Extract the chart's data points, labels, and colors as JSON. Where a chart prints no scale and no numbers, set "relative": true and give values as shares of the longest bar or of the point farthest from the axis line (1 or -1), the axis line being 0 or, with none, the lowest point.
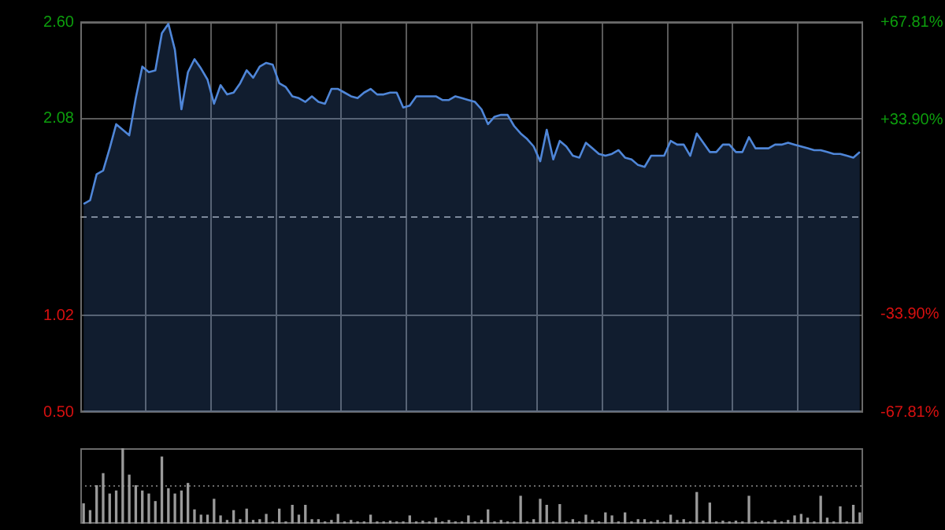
{
  "chart_data": [
    {
      "type": "area",
      "categories": [
        null,
        null,
        null,
        null,
        null,
        null,
        null,
        null,
        null,
        null,
        null,
        null,
        null,
        null,
        null,
        null,
        null,
        null,
        null,
        null,
        null,
        null,
        null,
        null,
        null,
        null,
        null,
        null,
        null,
        null,
        null,
        null,
        null,
        null,
        null,
        null,
        null,
        null,
        null,
        null,
        null,
        null,
        null,
        null,
        null,
        null,
        null,
        null,
        null,
        null,
        null,
        null,
        null,
        null,
        null,
        null,
        null,
        null,
        null,
        null,
        null,
        null,
        null,
        null,
        null,
        null,
        null,
        null,
        null,
        null,
        null,
        null,
        null,
        null,
        null,
        null,
        null,
        null,
        null,
        null,
        null,
        null,
        null,
        null,
        null,
        null,
        null,
        null,
        null,
        null,
        null,
        null,
        null,
        null,
        null,
        null,
        null,
        null,
        null,
        null,
        null,
        null,
        null,
        null,
        null,
        null,
        null,
        null,
        null,
        null,
        null,
        null,
        null,
        null,
        null,
        null,
        null,
        null,
        null,
        null
      ],
      "series": [
        {
          "color": "#4f86d8",
          "values": [
            1.62,
            1.64,
            1.78,
            1.8,
            1.92,
            2.05,
            2.02,
            1.99,
            2.19,
            2.36,
            2.33,
            2.34,
            2.54,
            2.59,
            2.45,
            2.13,
            2.33,
            2.4,
            2.35,
            2.29,
            2.16,
            2.26,
            2.21,
            2.22,
            2.27,
            2.34,
            2.3,
            2.36,
            2.38,
            2.37,
            2.27,
            2.25,
            2.2,
            2.19,
            2.17,
            2.2,
            2.17,
            2.16,
            2.24,
            2.24,
            2.22,
            2.2,
            2.19,
            2.22,
            2.24,
            2.21,
            2.21,
            2.22,
            2.22,
            2.14,
            2.15,
            2.2,
            2.2,
            2.2,
            2.2,
            2.18,
            2.18,
            2.2,
            2.19,
            2.18,
            2.17,
            2.13,
            2.05,
            2.09,
            2.1,
            2.1,
            2.04,
            2.0,
            1.97,
            1.93,
            1.85,
            2.02,
            1.86,
            1.96,
            1.93,
            1.88,
            1.87,
            1.95,
            1.92,
            1.89,
            1.88,
            1.89,
            1.91,
            1.87,
            1.86,
            1.83,
            1.82,
            1.88,
            1.88,
            1.88,
            1.96,
            1.94,
            1.94,
            1.88,
            2.0,
            1.95,
            1.9,
            1.9,
            1.94,
            1.94,
            1.9,
            1.9,
            1.98,
            1.92,
            1.92,
            1.92,
            1.94,
            1.94,
            1.95,
            1.94,
            1.93,
            1.92,
            1.91,
            1.91,
            1.9,
            1.89,
            1.89,
            1.88,
            1.87,
            1.9
          ]
        }
      ],
      "ylim": [
        0.5,
        2.6
      ],
      "yticks": [
        {
          "value": 0.5,
          "label": "0.50"
        },
        {
          "value": 1.02,
          "label": "1.02"
        },
        {
          "value": 2.08,
          "label": "2.08"
        },
        {
          "value": 2.6,
          "label": "2.60"
        }
      ],
      "y2lim": [
        -67.81,
        67.81
      ],
      "y2ticks": [
        {
          "value": -67.81,
          "label": "-67.81%"
        },
        {
          "value": -33.9,
          "label": "-33.90%"
        },
        {
          "value": 33.9,
          "label": "+33.90%"
        },
        {
          "value": 67.81,
          "label": "+67.81%"
        }
      ],
      "ref_lines": [
        {
          "axis": "y",
          "value": 1.55,
          "color": "#8a8a8a",
          "line_style": "dashed"
        }
      ],
      "grid": true,
      "legend": false
    },
    {
      "type": "bar",
      "relative": true,
      "categories": [
        null,
        null,
        null,
        null,
        null,
        null,
        null,
        null,
        null,
        null,
        null,
        null,
        null,
        null,
        null,
        null,
        null,
        null,
        null,
        null,
        null,
        null,
        null,
        null,
        null,
        null,
        null,
        null,
        null,
        null,
        null,
        null,
        null,
        null,
        null,
        null,
        null,
        null,
        null,
        null,
        null,
        null,
        null,
        null,
        null,
        null,
        null,
        null,
        null,
        null,
        null,
        null,
        null,
        null,
        null,
        null,
        null,
        null,
        null,
        null,
        null,
        null,
        null,
        null,
        null,
        null,
        null,
        null,
        null,
        null,
        null,
        null,
        null,
        null,
        null,
        null,
        null,
        null,
        null,
        null,
        null,
        null,
        null,
        null,
        null,
        null,
        null,
        null,
        null,
        null,
        null,
        null,
        null,
        null,
        null,
        null,
        null,
        null,
        null,
        null,
        null,
        null,
        null,
        null,
        null,
        null,
        null,
        null,
        null,
        null,
        null,
        null,
        null,
        null,
        null,
        null,
        null,
        null,
        null,
        null
      ],
      "values": [
        0.27,
        0.18,
        0.51,
        0.67,
        0.4,
        0.44,
        1,
        0.65,
        0.51,
        0.44,
        0.4,
        0.3,
        0.89,
        0.47,
        0.4,
        0.44,
        0.54,
        0.19,
        0.12,
        0.12,
        0.33,
        0.11,
        0.05,
        0.18,
        0.06,
        0.2,
        0.05,
        0.06,
        0.13,
        0.03,
        0.2,
        0.03,
        0.25,
        0.12,
        0.25,
        0.06,
        0.06,
        0.03,
        0.05,
        0.13,
        0.03,
        0.05,
        0.03,
        0.03,
        0.12,
        0.03,
        0.03,
        0.04,
        0.03,
        0.03,
        0.11,
        0.03,
        0.04,
        0.03,
        0.08,
        0.03,
        0.05,
        0.03,
        0.03,
        0.11,
        0.03,
        0.05,
        0.19,
        0.03,
        0.05,
        0.03,
        0.03,
        0.37,
        0.03,
        0.06,
        0.33,
        0.25,
        0.03,
        0.26,
        0.03,
        0.06,
        0.03,
        0.12,
        0.05,
        0.03,
        0.15,
        0.11,
        0.03,
        0.15,
        0.03,
        0.06,
        0.06,
        0.03,
        0.05,
        0.03,
        0.12,
        0.05,
        0.06,
        0.03,
        0.42,
        0.04,
        0.28,
        0.03,
        0.04,
        0.03,
        0.04,
        0.03,
        0.37,
        0.03,
        0.04,
        0.03,
        0.05,
        0.03,
        0.05,
        0.11,
        0.13,
        0.08,
        0.03,
        0.37,
        0.08,
        0.03,
        0.23,
        0.03,
        0.25,
        0.15
      ],
      "color": "#9a9a9a",
      "ref_lines": [
        {
          "axis": "y",
          "value": 0.5,
          "color": "#6a6a6a",
          "line_style": "dotted"
        }
      ],
      "legend": false
    }
  ]
}
